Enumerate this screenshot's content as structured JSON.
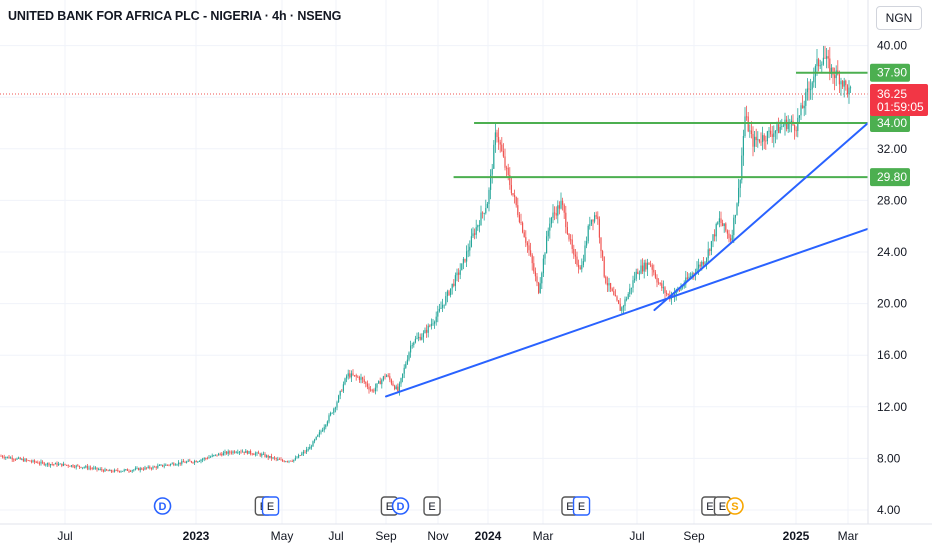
{
  "header": {
    "title": "UNITED BANK FOR AFRICA PLC - NIGERIA · 4h · NSENG",
    "currency": "NGN"
  },
  "colors": {
    "up": "#26a69a",
    "down": "#ef5350",
    "support": "#4caf50",
    "trendline": "#2962ff",
    "price_badge": "#f23645",
    "event_blue": "#2962ff",
    "event_orange": "#f7a600",
    "event_gray": "#555555"
  },
  "chart_data": {
    "type": "candlestick",
    "title": "UNITED BANK FOR AFRICA PLC - NIGERIA · 4h · NSENG",
    "y_ticks": [
      "40.00",
      "36.00",
      "32.00",
      "28.00",
      "24.00",
      "20.00",
      "16.00",
      "12.00",
      "8.00",
      "4.00"
    ],
    "ylim": [
      4,
      40
    ],
    "x_ticks": [
      {
        "label": "Jul",
        "bold": false
      },
      {
        "label": "2023",
        "bold": true
      },
      {
        "label": "May",
        "bold": false
      },
      {
        "label": "Jul",
        "bold": false
      },
      {
        "label": "Sep",
        "bold": false
      },
      {
        "label": "Nov",
        "bold": false
      },
      {
        "label": "2024",
        "bold": true
      },
      {
        "label": "Mar",
        "bold": false
      },
      {
        "label": "Jul",
        "bold": false
      },
      {
        "label": "Sep",
        "bold": false
      },
      {
        "label": "2025",
        "bold": true
      },
      {
        "label": "Mar",
        "bold": false
      }
    ],
    "price_path": [
      [
        "2022-05-01",
        7.9
      ],
      [
        "2022-06-01",
        7.6
      ],
      [
        "2022-07-01",
        7.5
      ],
      [
        "2022-08-01",
        7.3
      ],
      [
        "2022-09-01",
        7.0
      ],
      [
        "2022-10-01",
        7.1
      ],
      [
        "2022-11-01",
        7.3
      ],
      [
        "2022-12-01",
        7.6
      ],
      [
        "2023-01-01",
        7.8
      ],
      [
        "2023-02-01",
        8.3
      ],
      [
        "2023-03-01",
        8.6
      ],
      [
        "2023-04-01",
        8.3
      ],
      [
        "2023-05-01",
        7.8
      ],
      [
        "2023-05-15",
        7.9
      ],
      [
        "2023-06-01",
        8.8
      ],
      [
        "2023-06-15",
        10.2
      ],
      [
        "2023-07-01",
        12.2
      ],
      [
        "2023-07-15",
        14.5
      ],
      [
        "2023-08-01",
        14.2
      ],
      [
        "2023-08-15",
        13.2
      ],
      [
        "2023-09-01",
        14.5
      ],
      [
        "2023-09-15",
        13.2
      ],
      [
        "2023-10-01",
        17.0
      ],
      [
        "2023-10-15",
        17.6
      ],
      [
        "2023-11-01",
        19.2
      ],
      [
        "2023-11-15",
        21.0
      ],
      [
        "2023-12-01",
        23.0
      ],
      [
        "2023-12-15",
        25.5
      ],
      [
        "2024-01-01",
        28.0
      ],
      [
        "2024-01-10",
        33.5
      ],
      [
        "2024-01-20",
        30.5
      ],
      [
        "2024-02-01",
        27.5
      ],
      [
        "2024-02-15",
        24.0
      ],
      [
        "2024-02-25",
        21.0
      ],
      [
        "2024-03-10",
        26.5
      ],
      [
        "2024-03-25",
        27.8
      ],
      [
        "2024-04-10",
        23.5
      ],
      [
        "2024-04-20",
        22.8
      ],
      [
        "2024-05-01",
        26.5
      ],
      [
        "2024-05-10",
        27.0
      ],
      [
        "2024-05-20",
        22.0
      ],
      [
        "2024-06-01",
        20.5
      ],
      [
        "2024-06-10",
        19.5
      ],
      [
        "2024-06-20",
        20.8
      ],
      [
        "2024-07-01",
        22.5
      ],
      [
        "2024-07-15",
        23.2
      ],
      [
        "2024-07-25",
        21.5
      ],
      [
        "2024-08-05",
        20.5
      ],
      [
        "2024-08-15",
        21.0
      ],
      [
        "2024-09-01",
        22.5
      ],
      [
        "2024-09-15",
        23.5
      ],
      [
        "2024-10-01",
        26.5
      ],
      [
        "2024-10-15",
        25.0
      ],
      [
        "2024-10-25",
        29.0
      ],
      [
        "2024-11-01",
        34.5
      ],
      [
        "2024-11-10",
        32.5
      ],
      [
        "2024-11-25",
        33.0
      ],
      [
        "2024-12-10",
        33.5
      ],
      [
        "2024-12-20",
        34.0
      ],
      [
        "2025-01-01",
        33.8
      ],
      [
        "2025-01-10",
        35.5
      ],
      [
        "2025-01-25",
        38.5
      ],
      [
        "2025-02-01",
        39.2
      ],
      [
        "2025-02-10",
        38.0
      ],
      [
        "2025-02-20",
        37.5
      ],
      [
        "2025-03-01",
        36.5
      ],
      [
        "2025-03-10",
        36.25
      ]
    ],
    "horizontal_levels": [
      {
        "price": 37.9,
        "label": "37.90",
        "start": "2025-01-01"
      },
      {
        "price": 34.0,
        "label": "34.00",
        "start": "2023-12-15"
      },
      {
        "price": 29.8,
        "label": "29.80",
        "start": "2023-11-20"
      }
    ],
    "trendlines": [
      {
        "from": [
          "2023-09-01",
          12.8
        ],
        "to": [
          "2025-04-15",
          25.8
        ]
      },
      {
        "from": [
          "2024-07-20",
          19.5
        ],
        "to": [
          "2025-04-15",
          34.0
        ]
      }
    ],
    "last_price": {
      "price": 36.25,
      "label": "36.25",
      "countdown": "01:59:05"
    },
    "events": [
      {
        "date": "2022-11-15",
        "letter": "D",
        "style": "circle-blue"
      },
      {
        "date": "2023-04-05",
        "letter": "E",
        "style": "square-gray"
      },
      {
        "date": "2023-04-15",
        "letter": "E",
        "style": "square-gray-blue"
      },
      {
        "date": "2023-09-05",
        "letter": "E",
        "style": "square-gray"
      },
      {
        "date": "2023-09-18",
        "letter": "D",
        "style": "circle-blue"
      },
      {
        "date": "2023-10-25",
        "letter": "E",
        "style": "square-gray"
      },
      {
        "date": "2024-04-05",
        "letter": "E",
        "style": "square-gray"
      },
      {
        "date": "2024-04-20",
        "letter": "E",
        "style": "square-gray-blue"
      },
      {
        "date": "2024-09-20",
        "letter": "E",
        "style": "square-gray"
      },
      {
        "date": "2024-10-05",
        "letter": "E",
        "style": "square-gray"
      },
      {
        "date": "2024-10-20",
        "letter": "S",
        "style": "circle-orange"
      }
    ]
  }
}
